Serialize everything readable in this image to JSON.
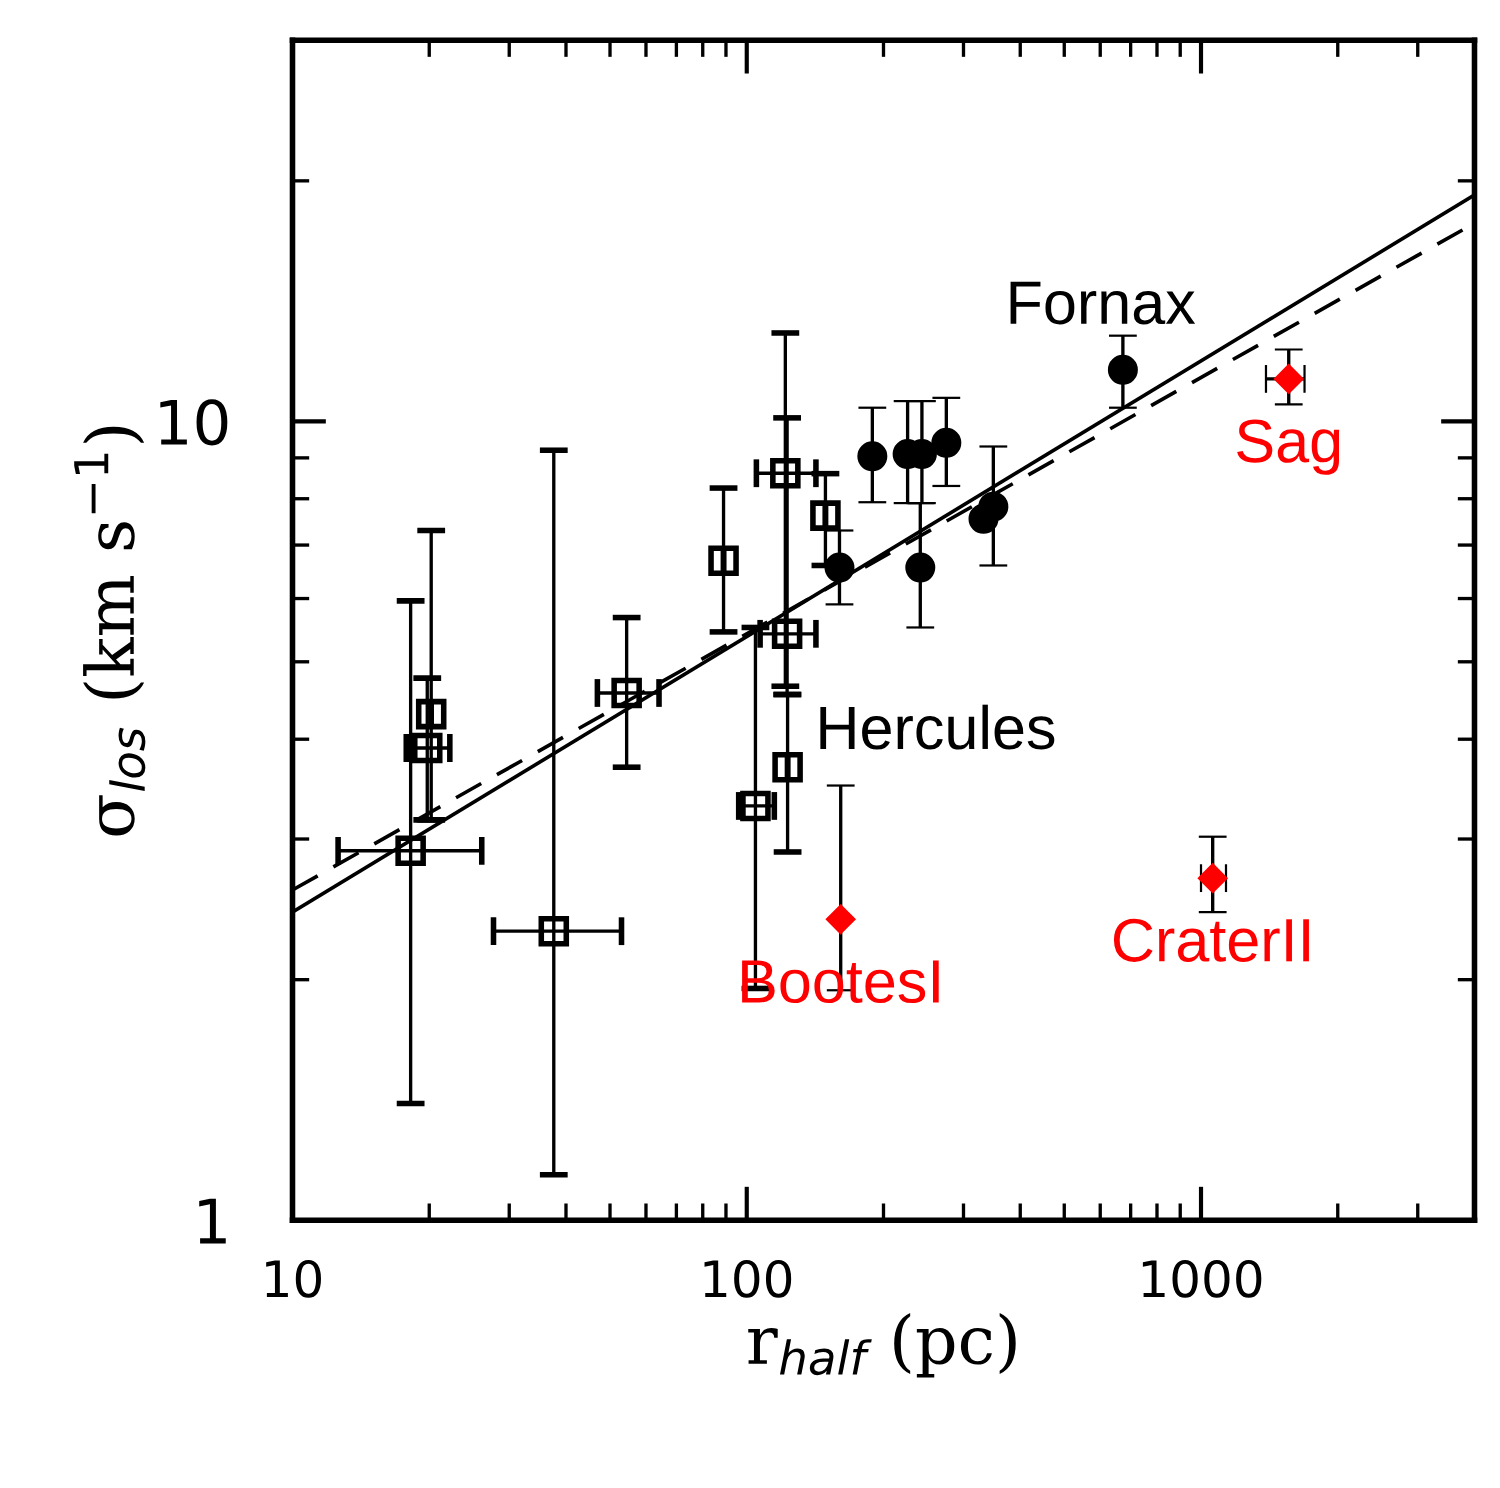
{
  "chart_data": {
    "type": "scatter",
    "xlabel": "r$_{half}$ (pc)",
    "ylabel": "σ$_{los}$ (km s$^{−1}$)",
    "log": "xy",
    "grid": false,
    "legend": false,
    "xlim": [
      10,
      4000
    ],
    "ylim": [
      1,
      30
    ],
    "xticks": [
      10,
      {
        "value": 20,
        "label": null
      },
      {
        "value": 30,
        "label": null
      },
      {
        "value": 40,
        "label": null
      },
      {
        "value": 50,
        "label": null
      },
      {
        "value": 60,
        "label": null
      },
      {
        "value": 70,
        "label": null
      },
      {
        "value": 80,
        "label": null
      },
      {
        "value": 90,
        "label": null
      },
      100,
      {
        "value": 200,
        "label": null
      },
      {
        "value": 300,
        "label": null
      },
      {
        "value": 400,
        "label": null
      },
      {
        "value": 500,
        "label": null
      },
      {
        "value": 600,
        "label": null
      },
      {
        "value": 700,
        "label": null
      },
      {
        "value": 800,
        "label": null
      },
      {
        "value": 900,
        "label": null
      },
      1000,
      {
        "value": 2000,
        "label": null
      },
      {
        "value": 3000,
        "label": null
      }
    ],
    "yticks": [
      1,
      {
        "value": 2,
        "label": null
      },
      {
        "value": 3,
        "label": null
      },
      {
        "value": 4,
        "label": null
      },
      {
        "value": 5,
        "label": null
      },
      {
        "value": 6,
        "label": null
      },
      {
        "value": 7,
        "label": null
      },
      {
        "value": 8,
        "label": null
      },
      {
        "value": 9,
        "label": null
      },
      10,
      {
        "value": 20,
        "label": null
      }
    ],
    "series": [
      {
        "marker": "square",
        "color": "#000000",
        "x": [
          18.2,
          19.8,
          20.2,
          54.4,
          88.9,
          121.6,
          104.5,
          122.7,
          123,
          149,
          37.6
        ],
        "values": [
          2.9,
          3.9,
          4.3,
          4.57,
          6.69,
          8.61,
          3.3,
          5.42,
          3.69,
          7.62,
          2.3
        ],
        "errors": [
          [
            1.4,
            5.96
          ],
          [
            3.17,
            4.77
          ],
          [
            3.17,
            7.3
          ],
          [
            3.69,
            5.68
          ],
          [
            5.45,
            8.25
          ],
          [
            4.66,
            12.9
          ],
          [
            1.95,
            5.52
          ],
          [
            4.55,
            10.1
          ],
          [
            2.89,
            4.55
          ],
          [
            6.6,
            8.6
          ],
          [
            1.14,
            9.2
          ]
        ],
        "xerrors": [
          [
            12.6,
            26.1
          ],
          [
            17.8,
            22.2
          ],
          null,
          [
            46.9,
            64.1
          ],
          null,
          [
            105,
            142
          ],
          [
            96,
            115
          ],
          [
            107,
            142
          ],
          null,
          null,
          [
            27.7,
            53
          ]
        ]
      },
      {
        "marker": "circle",
        "color": "#000000",
        "x": [
          189,
          226,
          243,
          275,
          241,
          160,
          332,
          349,
          673
        ],
        "values": [
          9.04,
          9.1,
          9.1,
          9.4,
          6.56,
          6.56,
          7.55,
          7.82,
          11.6
        ],
        "errors": [
          [
            7.92,
            10.4
          ],
          [
            7.9,
            10.6
          ],
          [
            7.9,
            10.6
          ],
          [
            8.3,
            10.7
          ],
          [
            5.52,
            7.9
          ],
          [
            5.9,
            7.3
          ],
          null,
          [
            6.6,
            9.3
          ],
          [
            10.4,
            12.8
          ]
        ]
      },
      {
        "marker": "diamond",
        "color": "#ff0000",
        "x": [
          1560,
          1061,
          161
        ],
        "values": [
          11.3,
          2.68,
          2.38
        ],
        "errors": [
          [
            10.5,
            12.3
          ],
          [
            2.43,
            3.02
          ],
          [
            1.94,
            3.5
          ]
        ],
        "xerrors": [
          [
            1390,
            1690
          ],
          [
            1000,
            1135
          ],
          null
        ]
      },
      {
        "type": "line",
        "line_style": "solid",
        "color": "#000000",
        "x": [
          10,
          4000
        ],
        "values": [
          2.43,
          19.2
        ]
      },
      {
        "type": "line",
        "line_style": "dashed",
        "color": "#000000",
        "x": [
          10,
          4000
        ],
        "values": [
          2.59,
          17.7
        ]
      }
    ],
    "annotations": [
      {
        "text": "Fornax",
        "x": 673,
        "y": 11.6
      },
      {
        "text": "Sag",
        "x": 1560,
        "y": 11.3
      },
      {
        "text": "Hercules",
        "x": 123,
        "y": 3.69
      },
      {
        "text": "BootesI",
        "x": 161,
        "y": 2.38
      },
      {
        "text": "CraterII",
        "x": 1061,
        "y": 2.68
      }
    ]
  }
}
